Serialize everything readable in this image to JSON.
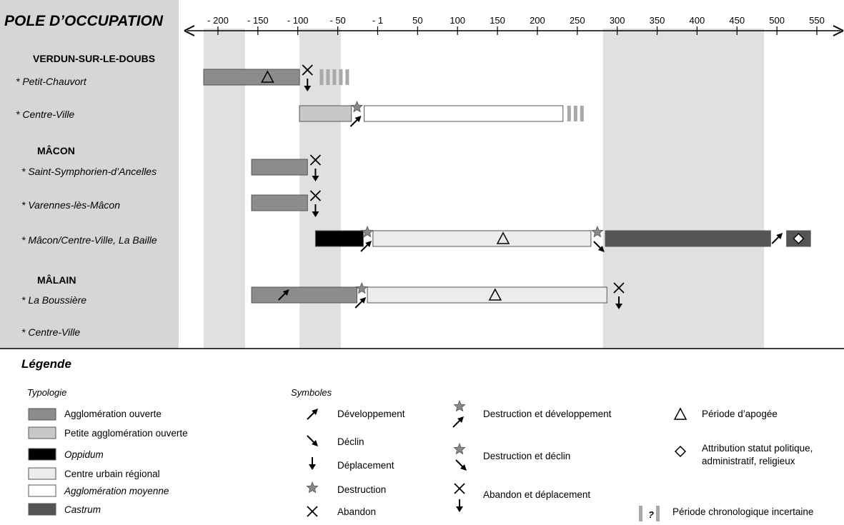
{
  "title": "POLE D’OCCUPATION",
  "axis": {
    "ticks": [
      "- 200",
      "- 150",
      "- 100",
      "- 50",
      "- 1",
      "50",
      "100",
      "150",
      "200",
      "250",
      "300",
      "350",
      "400",
      "450",
      "500",
      "550"
    ]
  },
  "groups": [
    {
      "name": "VERDUN-SUR-LE-DOUBS",
      "sites": [
        "* Petit-Chauvort",
        "* Centre-Ville"
      ]
    },
    {
      "name": "MÂCON",
      "sites": [
        "* Saint-Symphorien-d’Ancelles",
        "* Varennes-lès-Mâcon",
        "* Mâcon/Centre-Ville, La Baille"
      ]
    },
    {
      "name": "MÂLAIN",
      "sites": [
        "* La Boussière",
        "* Centre-Ville"
      ]
    }
  ],
  "chart_data": {
    "type": "gantt",
    "x_range": [
      -200,
      550
    ],
    "shaded_periods": [
      [
        -200,
        -150
      ],
      [
        -80,
        -30
      ],
      [
        300,
        500
      ]
    ],
    "bars": [
      {
        "site": "* Petit-Chauvort",
        "start": -200,
        "end": -80,
        "type": "Agglomération ouverte",
        "apogee": -120
      },
      {
        "site": "* Petit-Chauvort",
        "start": -60,
        "end": -20,
        "type": "Période chronologique incertaine"
      },
      {
        "site": "* Centre-Ville",
        "start": -80,
        "end": -15,
        "type": "Petite agglomération ouverte"
      },
      {
        "site": "* Centre-Ville",
        "start": 1,
        "end": 250,
        "type": "Agglomération moyenne"
      },
      {
        "site": "* Centre-Ville",
        "start": 250,
        "end": 275,
        "type": "Période chronologique incertaine"
      },
      {
        "site": "* Saint-Symphorien-d’Ancelles",
        "start": -140,
        "end": -70,
        "type": "Agglomération ouverte"
      },
      {
        "site": "* Varennes-lès-Mâcon",
        "start": -140,
        "end": -70,
        "type": "Agglomération ouverte"
      },
      {
        "site": "* Mâcon/Centre-Ville, La Baille",
        "start": -60,
        "end": 0,
        "type": "Oppidum"
      },
      {
        "site": "* Mâcon/Centre-Ville, La Baille",
        "start": 12,
        "end": 285,
        "type": "Centre urbain régional",
        "apogee": 175
      },
      {
        "site": "* Mâcon/Centre-Ville, La Baille",
        "start": 303,
        "end": 510,
        "type": "Castrum"
      },
      {
        "site": "* Mâcon/Centre-Ville, La Baille",
        "start": 530,
        "end": 560,
        "type": "Castrum"
      },
      {
        "site": "* La Boussière",
        "start": -140,
        "end": -8,
        "type": "Agglomération ouverte"
      },
      {
        "site": "* La Boussière",
        "start": 5,
        "end": 305,
        "type": "Centre urbain régional",
        "apogee": 165
      }
    ],
    "events": [
      {
        "site": "* Petit-Chauvort",
        "x": -70,
        "symbol": "Abandon et déplacement"
      },
      {
        "site": "* Centre-Ville",
        "x": -8,
        "symbol": "Destruction et développement"
      },
      {
        "site": "* Saint-Symphorien-d’Ancelles",
        "x": -60,
        "symbol": "Abandon et déplacement"
      },
      {
        "site": "* Varennes-lès-Mâcon",
        "x": -60,
        "symbol": "Abandon et déplacement"
      },
      {
        "site": "* Mâcon/Centre-Ville, La Baille",
        "x": 5,
        "symbol": "Destruction et développement"
      },
      {
        "site": "* Mâcon/Centre-Ville, La Baille",
        "x": 293,
        "symbol": "Destruction et déclin"
      },
      {
        "site": "* Mâcon/Centre-Ville, La Baille",
        "x": 518,
        "symbol": "Développement"
      },
      {
        "site": "* Mâcon/Centre-Ville, La Baille",
        "x": 545,
        "symbol": "Attribution statut politique, administratif, religieux"
      },
      {
        "site": "* La Boussière",
        "x": -100,
        "symbol": "Développement"
      },
      {
        "site": "* La Boussière",
        "x": -2,
        "symbol": "Destruction et développement"
      },
      {
        "site": "* La Boussière",
        "x": 320,
        "symbol": "Abandon et déplacement"
      }
    ]
  },
  "legend": {
    "title": "Légende",
    "typologie": {
      "heading": "Typologie",
      "items": [
        {
          "label": "Agglomération ouverte",
          "color": "#8c8c8c"
        },
        {
          "label": "Petite agglomération ouverte",
          "color": "#c8c8c8"
        },
        {
          "label": "Oppidum",
          "color": "#000000"
        },
        {
          "label": "Centre urbain régional",
          "color": "#ececec"
        },
        {
          "label": "Agglomération moyenne",
          "color": "#ffffff"
        },
        {
          "label": "Castrum",
          "color": "#555555"
        }
      ]
    },
    "symboles": {
      "heading": "Symboles",
      "col1": [
        "Développement",
        "Déclin",
        "Déplacement",
        "Destruction",
        "Abandon"
      ],
      "col2": [
        "Destruction et développement",
        "Destruction et déclin",
        "Abandon et déplacement"
      ],
      "col3": [
        "Période d’apogée",
        "Attribution statut politique,",
        "administratif, religieux",
        "Période chronologique incertaine"
      ],
      "question_mark": "?"
    }
  }
}
